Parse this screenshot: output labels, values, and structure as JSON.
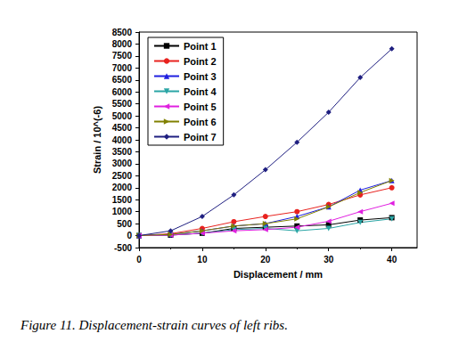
{
  "chart_data": {
    "type": "line",
    "caption": "Figure 11. Displacement-strain curves of left ribs.",
    "x_label": "Displacement / mm",
    "y_label": "Strain / 10^(-6)",
    "x": [
      0,
      5,
      10,
      15,
      20,
      25,
      30,
      35,
      40
    ],
    "xlim": [
      0,
      44
    ],
    "xticks": [
      0,
      10,
      20,
      30,
      40
    ],
    "ylim": [
      -500,
      8500
    ],
    "yticks": [
      -500,
      0,
      500,
      1000,
      1500,
      2000,
      2500,
      3000,
      3500,
      4000,
      4500,
      5000,
      5500,
      6000,
      6500,
      7000,
      7500,
      8000,
      8500
    ],
    "legend": "upper left",
    "grid": false,
    "series": [
      {
        "name": "Point 1",
        "color": "#000000",
        "marker": "square",
        "values": [
          0,
          20,
          100,
          300,
          350,
          400,
          450,
          650,
          750
        ]
      },
      {
        "name": "Point 2",
        "color": "#e8221e",
        "marker": "circle",
        "values": [
          0,
          80,
          300,
          580,
          800,
          1000,
          1300,
          1700,
          2000
        ]
      },
      {
        "name": "Point 3",
        "color": "#1f1fe0",
        "marker": "triangle_up",
        "values": [
          0,
          50,
          200,
          400,
          500,
          800,
          1200,
          1900,
          2300
        ]
      },
      {
        "name": "Point 4",
        "color": "#2aa5a5",
        "marker": "triangle_down",
        "values": [
          0,
          30,
          100,
          250,
          300,
          200,
          300,
          550,
          700
        ]
      },
      {
        "name": "Point 5",
        "color": "#e020e0",
        "marker": "triangle_left",
        "values": [
          0,
          20,
          100,
          200,
          250,
          350,
          600,
          1000,
          1350
        ]
      },
      {
        "name": "Point 6",
        "color": "#808000",
        "marker": "triangle_right",
        "values": [
          0,
          50,
          200,
          400,
          500,
          700,
          1200,
          1800,
          2300
        ]
      },
      {
        "name": "Point 7",
        "color": "#1f1f80",
        "marker": "diamond",
        "values": [
          0,
          200,
          800,
          1700,
          2750,
          3900,
          5150,
          6600,
          7800
        ]
      }
    ]
  }
}
